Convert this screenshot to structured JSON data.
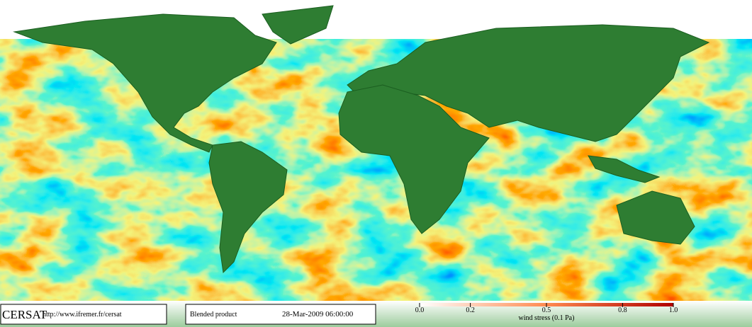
{
  "footer": {
    "logo": "CERSAT",
    "url": "http://www.ifremer.fr/cersat",
    "product": "Blended product",
    "timestamp": "28-Mar-2009 06:00:00"
  },
  "colorbar": {
    "range": [
      0,
      1
    ],
    "ticks": [
      {
        "value": 0,
        "label": "0.0"
      },
      0.2,
      0.5,
      0.8,
      {
        "value": 1,
        "label": "1.0"
      }
    ],
    "label": "wind stress (0.1 Pa)"
  }
}
